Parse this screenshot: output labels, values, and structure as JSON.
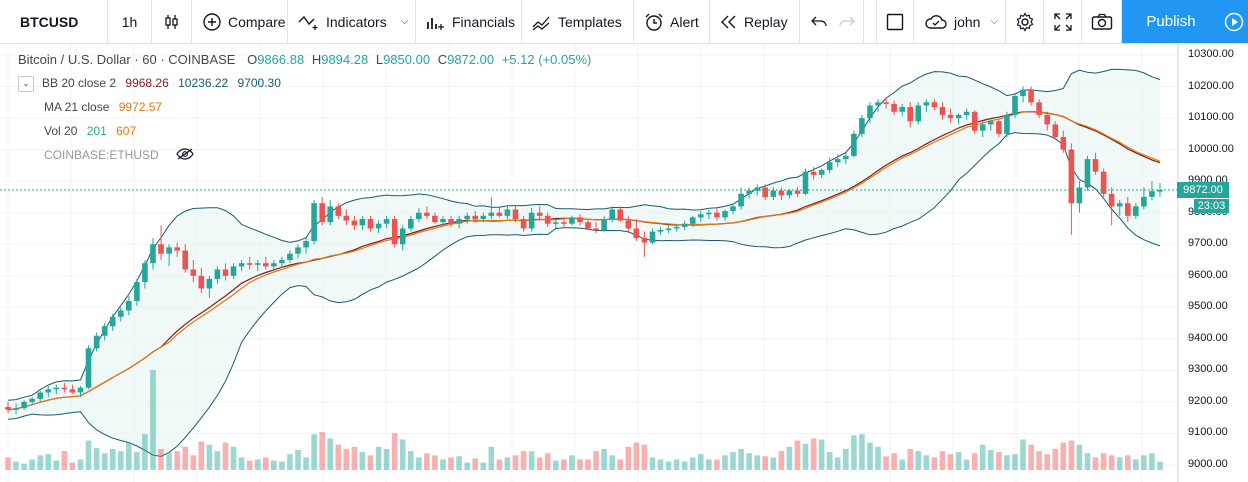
{
  "toolbar": {
    "symbol": "BTCUSD",
    "resolution": "1h",
    "compare": "Compare",
    "indicators": "Indicators",
    "financials": "Financials",
    "templates": "Templates",
    "alert": "Alert",
    "replay": "Replay",
    "user": "john",
    "publish": "Publish"
  },
  "legend": {
    "title": "Bitcoin / U.S. Dollar · 60 · COINBASE",
    "o_key": "O",
    "o_val": "9866.88",
    "h_key": "H",
    "h_val": "9894.28",
    "l_key": "L",
    "l_val": "9850.00",
    "c_key": "C",
    "c_val": "9872.00",
    "change": "+5.12 (+0.05%)",
    "bb_label": "BB 20 close 2",
    "bb_basis": "9968.26",
    "bb_upper": "10236.22",
    "bb_lower": "9700.30",
    "ma_label": "MA 21 close",
    "ma_val": "9972.57",
    "vol_label": "Vol 20",
    "vol_val": "201",
    "vol_ma": "607",
    "compare_symbol": "COINBASE:ETHUSD"
  },
  "price_axis": {
    "ticks": [
      "10300.00",
      "10200.00",
      "10100.00",
      "10000.00",
      "9900.00",
      "9800.00",
      "9700.00",
      "9600.00",
      "9500.00",
      "9400.00",
      "9300.00",
      "9200.00",
      "9100.00",
      "9000.00"
    ],
    "current_price": "9872.00",
    "countdown": "23:03"
  },
  "colors": {
    "up": "#26a69a",
    "down": "#ef5350",
    "bb_band": "#1a5a73",
    "bb_fill": "#e6f4f4",
    "ma": "#e07a10",
    "bb_basis": "#8b1a1a",
    "accent": "#2196f3"
  },
  "chart_data": {
    "type": "candlestick",
    "y_range": [
      8975,
      10340
    ],
    "candles": [
      [
        9184,
        9200,
        9165,
        9175
      ],
      [
        9175,
        9195,
        9160,
        9180
      ],
      [
        9180,
        9205,
        9175,
        9200
      ],
      [
        9200,
        9215,
        9190,
        9210
      ],
      [
        9210,
        9235,
        9200,
        9230
      ],
      [
        9230,
        9250,
        9215,
        9240
      ],
      [
        9240,
        9255,
        9225,
        9245
      ],
      [
        9245,
        9260,
        9230,
        9240
      ],
      [
        9240,
        9255,
        9225,
        9230
      ],
      [
        9230,
        9250,
        9215,
        9245
      ],
      [
        9245,
        9380,
        9240,
        9370
      ],
      [
        9370,
        9420,
        9360,
        9410
      ],
      [
        9410,
        9450,
        9395,
        9440
      ],
      [
        9440,
        9480,
        9425,
        9470
      ],
      [
        9470,
        9500,
        9455,
        9490
      ],
      [
        9490,
        9535,
        9475,
        9520
      ],
      [
        9520,
        9590,
        9505,
        9580
      ],
      [
        9580,
        9650,
        9560,
        9640
      ],
      [
        9640,
        9720,
        9620,
        9700
      ],
      [
        9700,
        9760,
        9650,
        9670
      ],
      [
        9670,
        9700,
        9630,
        9690
      ],
      [
        9690,
        9705,
        9660,
        9680
      ],
      [
        9680,
        9700,
        9610,
        9620
      ],
      [
        9620,
        9650,
        9580,
        9600
      ],
      [
        9600,
        9625,
        9545,
        9560
      ],
      [
        9560,
        9600,
        9530,
        9590
      ],
      [
        9590,
        9630,
        9575,
        9620
      ],
      [
        9620,
        9640,
        9585,
        9600
      ],
      [
        9600,
        9640,
        9590,
        9630
      ],
      [
        9630,
        9650,
        9615,
        9640
      ],
      [
        9640,
        9660,
        9620,
        9635
      ],
      [
        9635,
        9650,
        9615,
        9640
      ],
      [
        9640,
        9660,
        9620,
        9630
      ],
      [
        9630,
        9650,
        9615,
        9640
      ],
      [
        9640,
        9660,
        9625,
        9650
      ],
      [
        9650,
        9680,
        9640,
        9670
      ],
      [
        9670,
        9700,
        9655,
        9690
      ],
      [
        9690,
        9720,
        9670,
        9710
      ],
      [
        9710,
        9840,
        9700,
        9830
      ],
      [
        9830,
        9850,
        9760,
        9770
      ],
      [
        9770,
        9840,
        9760,
        9820
      ],
      [
        9820,
        9830,
        9780,
        9790
      ],
      [
        9790,
        9810,
        9760,
        9775
      ],
      [
        9775,
        9790,
        9745,
        9760
      ],
      [
        9760,
        9790,
        9745,
        9780
      ],
      [
        9780,
        9790,
        9740,
        9750
      ],
      [
        9750,
        9775,
        9735,
        9765
      ],
      [
        9765,
        9790,
        9750,
        9780
      ],
      [
        9780,
        9790,
        9690,
        9700
      ],
      [
        9700,
        9760,
        9680,
        9750
      ],
      [
        9750,
        9790,
        9740,
        9780
      ],
      [
        9780,
        9815,
        9770,
        9800
      ],
      [
        9800,
        9820,
        9780,
        9790
      ],
      [
        9790,
        9800,
        9765,
        9770
      ],
      [
        9770,
        9790,
        9760,
        9780
      ],
      [
        9780,
        9790,
        9755,
        9765
      ],
      [
        9765,
        9790,
        9750,
        9780
      ],
      [
        9780,
        9800,
        9765,
        9790
      ],
      [
        9790,
        9805,
        9770,
        9780
      ],
      [
        9780,
        9800,
        9770,
        9790
      ],
      [
        9790,
        9850,
        9780,
        9800
      ],
      [
        9800,
        9820,
        9785,
        9790
      ],
      [
        9790,
        9820,
        9780,
        9810
      ],
      [
        9810,
        9820,
        9770,
        9780
      ],
      [
        9780,
        9790,
        9740,
        9750
      ],
      [
        9750,
        9815,
        9740,
        9800
      ],
      [
        9800,
        9820,
        9775,
        9790
      ],
      [
        9790,
        9800,
        9755,
        9765
      ],
      [
        9765,
        9780,
        9750,
        9770
      ],
      [
        9770,
        9785,
        9755,
        9765
      ],
      [
        9765,
        9790,
        9760,
        9785
      ],
      [
        9785,
        9795,
        9760,
        9770
      ],
      [
        9770,
        9780,
        9745,
        9750
      ],
      [
        9750,
        9770,
        9735,
        9745
      ],
      [
        9745,
        9790,
        9740,
        9780
      ],
      [
        9780,
        9820,
        9770,
        9810
      ],
      [
        9810,
        9820,
        9770,
        9775
      ],
      [
        9775,
        9790,
        9740,
        9750
      ],
      [
        9750,
        9780,
        9710,
        9720
      ],
      [
        9720,
        9740,
        9660,
        9705
      ],
      [
        9705,
        9750,
        9700,
        9740
      ],
      [
        9740,
        9755,
        9730,
        9745
      ],
      [
        9745,
        9760,
        9735,
        9750
      ],
      [
        9750,
        9765,
        9740,
        9755
      ],
      [
        9755,
        9775,
        9745,
        9765
      ],
      [
        9765,
        9790,
        9755,
        9785
      ],
      [
        9785,
        9805,
        9770,
        9795
      ],
      [
        9795,
        9810,
        9780,
        9800
      ],
      [
        9800,
        9815,
        9775,
        9785
      ],
      [
        9785,
        9810,
        9775,
        9805
      ],
      [
        9805,
        9830,
        9795,
        9820
      ],
      [
        9820,
        9880,
        9810,
        9860
      ],
      [
        9860,
        9880,
        9845,
        9870
      ],
      [
        9870,
        9890,
        9855,
        9880
      ],
      [
        9880,
        9890,
        9840,
        9850
      ],
      [
        9850,
        9880,
        9840,
        9870
      ],
      [
        9870,
        9880,
        9840,
        9855
      ],
      [
        9855,
        9875,
        9845,
        9870
      ],
      [
        9870,
        9880,
        9850,
        9860
      ],
      [
        9860,
        9940,
        9855,
        9930
      ],
      [
        9930,
        9945,
        9905,
        9920
      ],
      [
        9920,
        9940,
        9910,
        9935
      ],
      [
        9935,
        9975,
        9925,
        9960
      ],
      [
        9960,
        9985,
        9945,
        9970
      ],
      [
        9970,
        9990,
        9955,
        9980
      ],
      [
        9980,
        10060,
        9975,
        10050
      ],
      [
        10050,
        10110,
        10040,
        10100
      ],
      [
        10100,
        10150,
        10085,
        10140
      ],
      [
        10140,
        10160,
        10120,
        10150
      ],
      [
        10150,
        10165,
        10130,
        10145
      ],
      [
        10145,
        10155,
        10110,
        10120
      ],
      [
        10120,
        10145,
        10105,
        10135
      ],
      [
        10135,
        10150,
        10070,
        10090
      ],
      [
        10090,
        10150,
        10080,
        10140
      ],
      [
        10140,
        10160,
        10120,
        10150
      ],
      [
        10150,
        10160,
        10125,
        10135
      ],
      [
        10135,
        10150,
        10095,
        10110
      ],
      [
        10110,
        10130,
        10085,
        10100
      ],
      [
        10100,
        10115,
        10080,
        10110
      ],
      [
        10110,
        10130,
        10095,
        10120
      ],
      [
        10120,
        10125,
        10050,
        10060
      ],
      [
        10060,
        10090,
        10040,
        10080
      ],
      [
        10080,
        10100,
        10060,
        10090
      ],
      [
        10090,
        10095,
        10040,
        10050
      ],
      [
        10050,
        10120,
        10040,
        10110
      ],
      [
        10110,
        10180,
        10100,
        10170
      ],
      [
        10170,
        10200,
        10150,
        10190
      ],
      [
        10190,
        10200,
        10140,
        10150
      ],
      [
        10150,
        10160,
        10100,
        10110
      ],
      [
        10110,
        10120,
        10060,
        10080
      ],
      [
        10080,
        10090,
        10035,
        10040
      ],
      [
        10040,
        10060,
        9990,
        10000
      ],
      [
        10000,
        10020,
        9730,
        9830
      ],
      [
        9830,
        9900,
        9800,
        9880
      ],
      [
        9880,
        9980,
        9870,
        9970
      ],
      [
        9970,
        9990,
        9920,
        9930
      ],
      [
        9930,
        9940,
        9850,
        9860
      ],
      [
        9860,
        9880,
        9760,
        9820
      ],
      [
        9820,
        9840,
        9790,
        9830
      ],
      [
        9830,
        9850,
        9770,
        9790
      ],
      [
        9790,
        9830,
        9780,
        9820
      ],
      [
        9820,
        9880,
        9810,
        9850
      ],
      [
        9850,
        9900,
        9840,
        9868
      ],
      [
        9866.88,
        9894.28,
        9850,
        9872
      ]
    ],
    "volume": [
      12,
      8,
      6,
      10,
      14,
      15,
      9,
      18,
      7,
      10,
      28,
      21,
      16,
      20,
      18,
      26,
      17,
      34,
      95,
      20,
      16,
      18,
      22,
      14,
      27,
      24,
      18,
      26,
      22,
      12,
      9,
      10,
      12,
      9,
      8,
      15,
      19,
      12,
      34,
      36,
      30,
      24,
      20,
      22,
      17,
      14,
      22,
      20,
      35,
      29,
      18,
      12,
      16,
      14,
      10,
      12,
      13,
      7,
      11,
      7,
      22,
      10,
      12,
      14,
      18,
      18,
      12,
      16,
      9,
      10,
      14,
      10,
      10,
      18,
      20,
      14,
      10,
      22,
      26,
      24,
      12,
      10,
      8,
      10,
      8,
      12,
      15,
      10,
      10,
      14,
      17,
      20,
      16,
      14,
      13,
      12,
      18,
      22,
      28,
      25,
      30,
      29,
      17,
      12,
      20,
      33,
      34,
      26,
      22,
      13,
      16,
      10,
      20,
      18,
      14,
      12,
      18,
      15,
      17,
      10,
      16,
      24,
      19,
      17,
      14,
      15,
      29,
      24,
      18,
      15,
      20,
      26,
      28,
      24,
      16,
      12,
      16,
      14,
      12,
      14,
      10,
      14,
      16,
      8
    ],
    "x_label": "",
    "y_label": "",
    "indicators": [
      "BB 20 close 2",
      "MA 21 close",
      "Vol 20"
    ]
  }
}
